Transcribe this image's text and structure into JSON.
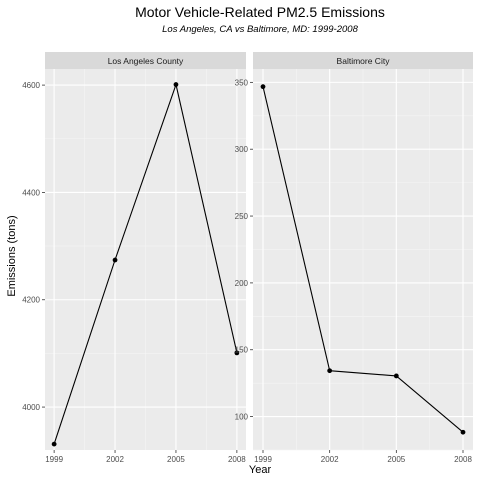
{
  "chart_data": {
    "type": "line",
    "title": "Motor Vehicle-Related PM2.5 Emissions",
    "subtitle": "Los Angeles, CA vs Baltimore, MD: 1999-2008",
    "xlabel": "Year",
    "ylabel": "Emissions (tons)",
    "grid": true,
    "panels": [
      {
        "name": "Los Angeles County",
        "x": [
          1999,
          2002,
          2005,
          2008
        ],
        "y": [
          3931,
          4274,
          4601,
          4101
        ],
        "ylim": [
          3920,
          4630
        ],
        "yticks": [
          4000,
          4200,
          4400,
          4600
        ]
      },
      {
        "name": "Baltimore City",
        "x": [
          1999,
          2002,
          2005,
          2008
        ],
        "y": [
          346.8,
          134.3,
          130.4,
          88.3
        ],
        "ylim": [
          75,
          360
        ],
        "yticks": [
          100,
          150,
          200,
          250,
          300,
          350
        ]
      }
    ],
    "xticks": [
      "1999",
      "2002",
      "2005",
      "2008"
    ]
  }
}
